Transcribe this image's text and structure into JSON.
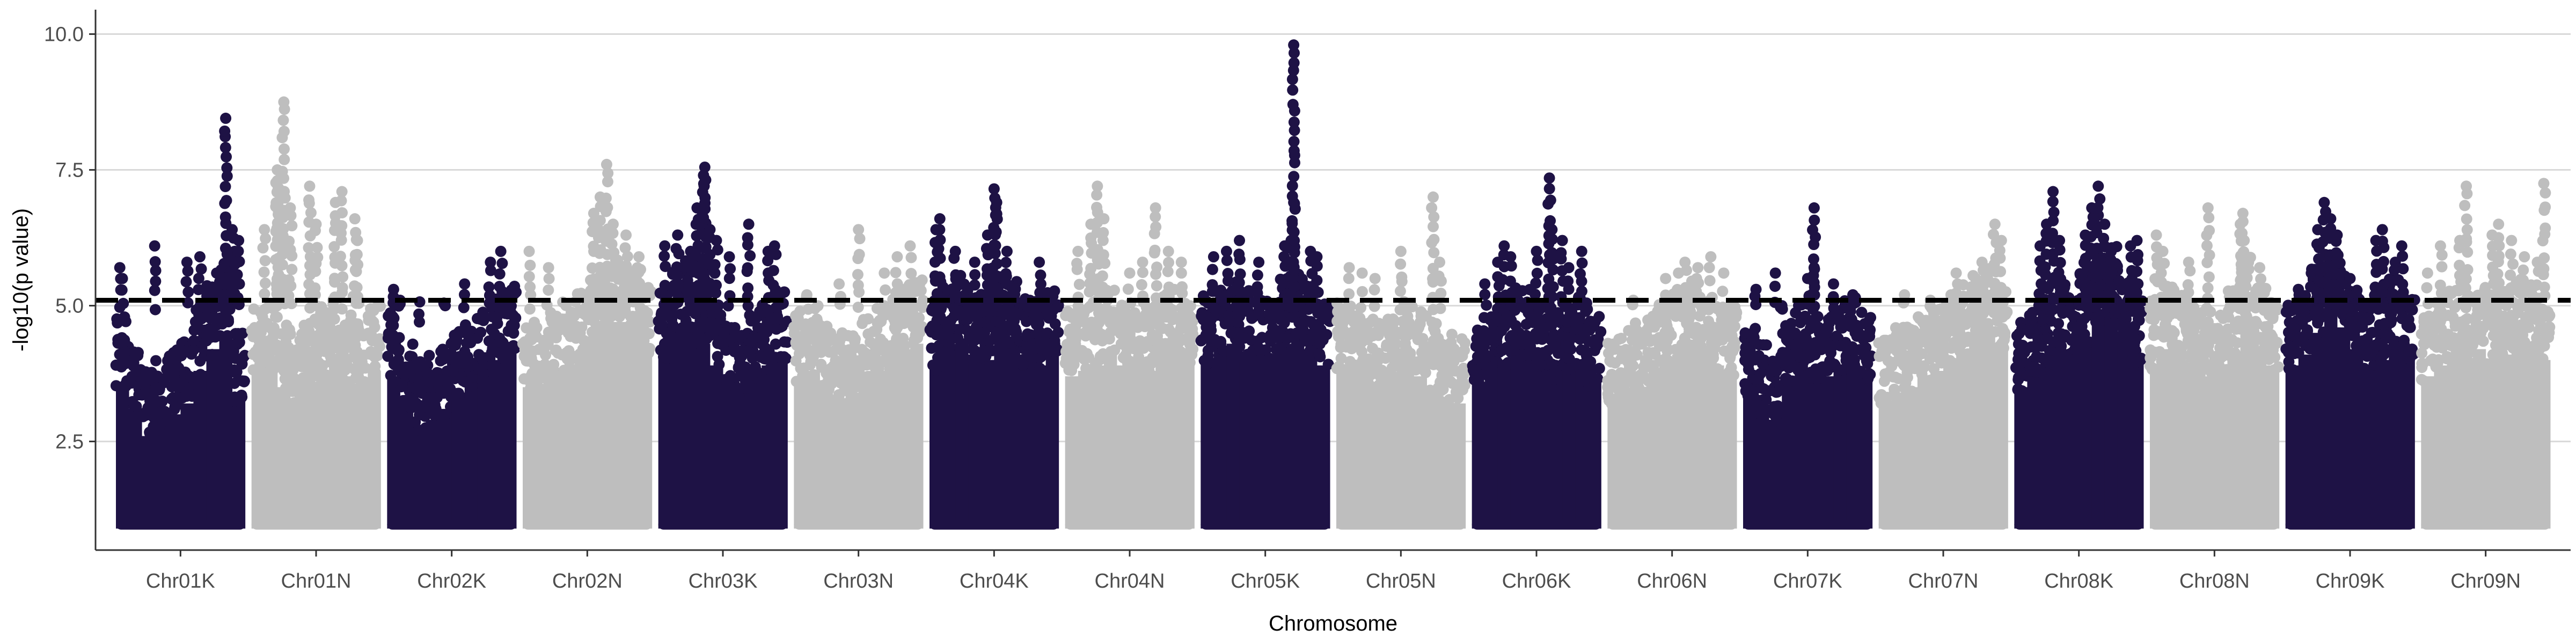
{
  "chart_data": {
    "type": "scatter",
    "subtype": "manhattan",
    "title": "",
    "xlabel": "Chromosome",
    "ylabel": "-log10(p value)",
    "ylim": [
      0.5,
      10.45
    ],
    "y_ticks": [
      2.5,
      5.0,
      7.5,
      10.0
    ],
    "y_tick_labels": [
      "2.5",
      "5.0",
      "7.5",
      "10.0"
    ],
    "grid": "horizontal major gridlines",
    "legend": "none",
    "point_min": 1.0,
    "significance_threshold": 5.1,
    "threshold_style": "black dashed line",
    "colors": {
      "dark": "#1e1245",
      "light": "#bebebe",
      "threshold": "#000000",
      "grid": "#d9d9d9",
      "axis": "#333333"
    },
    "categories": [
      "Chr01K",
      "Chr01N",
      "Chr02K",
      "Chr02N",
      "Chr03K",
      "Chr03N",
      "Chr04K",
      "Chr04N",
      "Chr05K",
      "Chr05N",
      "Chr06K",
      "Chr06N",
      "Chr07K",
      "Chr07N",
      "Chr08K",
      "Chr08N",
      "Chr09K",
      "Chr09N"
    ],
    "series": [
      {
        "chromosome": "Chr01K",
        "color": "dark",
        "dense_top": [
          4.7,
          4.2,
          3.7,
          3.9,
          4.1,
          4.3,
          4.9,
          5.3,
          5.6,
          4.4
        ],
        "peaks": [
          [
            0.03,
            5.7
          ],
          [
            0.05,
            5.5
          ],
          [
            0.3,
            6.1
          ],
          [
            0.55,
            5.8
          ],
          [
            0.65,
            5.9
          ],
          [
            0.78,
            5.6
          ],
          [
            0.9,
            6.4
          ],
          [
            0.92,
            6.0
          ],
          [
            0.88,
            5.9
          ],
          [
            0.85,
            8.45
          ],
          [
            0.95,
            6.2
          ]
        ]
      },
      {
        "chromosome": "Chr01N",
        "color": "light",
        "dense_top": [
          4.9,
          5.0,
          4.6,
          4.4,
          4.7,
          4.9,
          5.1,
          4.8,
          4.6,
          4.9
        ],
        "peaks": [
          [
            0.1,
            6.4
          ],
          [
            0.2,
            7.5
          ],
          [
            0.2,
            7.3
          ],
          [
            0.25,
            8.75
          ],
          [
            0.45,
            7.2
          ],
          [
            0.5,
            6.5
          ],
          [
            0.65,
            6.9
          ],
          [
            0.7,
            7.1
          ],
          [
            0.8,
            6.6
          ],
          [
            0.82,
            6.2
          ],
          [
            0.3,
            6.8
          ]
        ]
      },
      {
        "chromosome": "Chr02K",
        "color": "dark",
        "dense_top": [
          4.8,
          4.2,
          3.9,
          4.0,
          4.2,
          4.5,
          4.7,
          4.9,
          5.1,
          5.3
        ],
        "peaks": [
          [
            0.05,
            5.3
          ],
          [
            0.1,
            5.1
          ],
          [
            0.25,
            4.7
          ],
          [
            0.45,
            5.0
          ],
          [
            0.6,
            5.4
          ],
          [
            0.8,
            5.8
          ],
          [
            0.88,
            6.0
          ],
          [
            0.93,
            5.2
          ]
        ]
      },
      {
        "chromosome": "Chr02N",
        "color": "light",
        "dense_top": [
          4.6,
          4.5,
          4.8,
          5.0,
          5.2,
          5.4,
          5.6,
          5.8,
          5.6,
          5.3
        ],
        "peaks": [
          [
            0.05,
            6.0
          ],
          [
            0.2,
            5.7
          ],
          [
            0.55,
            6.7
          ],
          [
            0.6,
            7.0
          ],
          [
            0.65,
            7.6
          ],
          [
            0.7,
            6.5
          ],
          [
            0.8,
            6.3
          ],
          [
            0.9,
            5.9
          ]
        ]
      },
      {
        "chromosome": "Chr03K",
        "color": "dark",
        "dense_top": [
          5.2,
          5.6,
          5.8,
          5.4,
          5.0,
          4.7,
          4.5,
          4.8,
          5.0,
          5.2
        ],
        "peaks": [
          [
            0.05,
            6.1
          ],
          [
            0.15,
            6.3
          ],
          [
            0.25,
            6.0
          ],
          [
            0.3,
            6.8
          ],
          [
            0.35,
            7.4
          ],
          [
            0.36,
            7.55
          ],
          [
            0.4,
            6.4
          ],
          [
            0.45,
            6.2
          ],
          [
            0.55,
            5.9
          ],
          [
            0.7,
            6.5
          ],
          [
            0.85,
            6.0
          ],
          [
            0.9,
            6.1
          ]
        ]
      },
      {
        "chromosome": "Chr03N",
        "color": "light",
        "dense_top": [
          4.8,
          4.9,
          4.6,
          4.4,
          4.5,
          4.7,
          4.9,
          5.1,
          5.3,
          5.4
        ],
        "peaks": [
          [
            0.1,
            5.2
          ],
          [
            0.35,
            5.4
          ],
          [
            0.5,
            6.4
          ],
          [
            0.7,
            5.6
          ],
          [
            0.8,
            5.9
          ],
          [
            0.9,
            6.1
          ]
        ]
      },
      {
        "chromosome": "Chr04K",
        "color": "dark",
        "dense_top": [
          5.0,
          5.3,
          5.5,
          5.2,
          5.1,
          5.6,
          5.4,
          5.1,
          5.0,
          5.2
        ],
        "peaks": [
          [
            0.05,
            6.4
          ],
          [
            0.08,
            6.6
          ],
          [
            0.2,
            6.0
          ],
          [
            0.35,
            5.8
          ],
          [
            0.45,
            6.3
          ],
          [
            0.5,
            7.15
          ],
          [
            0.52,
            6.9
          ],
          [
            0.6,
            6.0
          ],
          [
            0.85,
            5.8
          ]
        ]
      },
      {
        "chromosome": "Chr04N",
        "color": "light",
        "dense_top": [
          4.8,
          4.9,
          5.0,
          5.2,
          5.0,
          4.8,
          4.9,
          5.1,
          5.2,
          5.0
        ],
        "peaks": [
          [
            0.1,
            6.0
          ],
          [
            0.2,
            6.5
          ],
          [
            0.25,
            7.2
          ],
          [
            0.3,
            6.6
          ],
          [
            0.5,
            5.6
          ],
          [
            0.6,
            5.8
          ],
          [
            0.7,
            6.8
          ],
          [
            0.8,
            6.0
          ],
          [
            0.9,
            5.8
          ]
        ]
      },
      {
        "chromosome": "Chr05K",
        "color": "dark",
        "dense_top": [
          5.1,
          5.3,
          5.4,
          5.2,
          5.0,
          5.1,
          5.4,
          5.6,
          5.3,
          5.0
        ],
        "peaks": [
          [
            0.1,
            5.9
          ],
          [
            0.2,
            6.0
          ],
          [
            0.3,
            6.2
          ],
          [
            0.45,
            5.8
          ],
          [
            0.65,
            6.1
          ],
          [
            0.72,
            6.9
          ],
          [
            0.7,
            6.2
          ],
          [
            0.72,
            9.8
          ],
          [
            0.85,
            6.0
          ],
          [
            0.9,
            5.9
          ]
        ]
      },
      {
        "chromosome": "Chr05N",
        "color": "light",
        "dense_top": [
          5.0,
          4.9,
          4.7,
          4.6,
          4.8,
          5.0,
          4.8,
          4.6,
          4.4,
          4.3
        ],
        "peaks": [
          [
            0.1,
            5.7
          ],
          [
            0.2,
            5.6
          ],
          [
            0.3,
            5.5
          ],
          [
            0.5,
            6.0
          ],
          [
            0.75,
            7.0
          ],
          [
            0.8,
            5.8
          ]
        ]
      },
      {
        "chromosome": "Chr06K",
        "color": "dark",
        "dense_top": [
          4.7,
          4.9,
          5.1,
          5.3,
          5.2,
          5.0,
          4.8,
          4.9,
          5.1,
          4.7
        ],
        "peaks": [
          [
            0.1,
            5.4
          ],
          [
            0.2,
            5.8
          ],
          [
            0.25,
            6.1
          ],
          [
            0.3,
            5.9
          ],
          [
            0.5,
            6.0
          ],
          [
            0.6,
            7.35
          ],
          [
            0.62,
            6.4
          ],
          [
            0.75,
            5.7
          ],
          [
            0.85,
            6.0
          ],
          [
            0.7,
            6.2
          ]
        ]
      },
      {
        "chromosome": "Chr06N",
        "color": "light",
        "dense_top": [
          4.3,
          4.5,
          4.6,
          4.8,
          5.0,
          5.2,
          5.4,
          5.2,
          5.0,
          4.9
        ],
        "peaks": [
          [
            0.2,
            5.1
          ],
          [
            0.45,
            5.5
          ],
          [
            0.55,
            5.6
          ],
          [
            0.6,
            5.8
          ],
          [
            0.7,
            5.7
          ],
          [
            0.8,
            5.9
          ],
          [
            0.9,
            5.6
          ]
        ]
      },
      {
        "chromosome": "Chr07K",
        "color": "dark",
        "dense_top": [
          4.5,
          4.2,
          4.0,
          4.6,
          5.0,
          4.7,
          4.8,
          5.0,
          5.1,
          4.8
        ],
        "peaks": [
          [
            0.1,
            5.3
          ],
          [
            0.25,
            5.6
          ],
          [
            0.3,
            5.0
          ],
          [
            0.5,
            5.5
          ],
          [
            0.55,
            5.7
          ],
          [
            0.55,
            6.8
          ],
          [
            0.7,
            5.4
          ],
          [
            0.85,
            5.2
          ]
        ]
      },
      {
        "chromosome": "Chr07N",
        "color": "light",
        "dense_top": [
          4.3,
          4.5,
          4.6,
          4.8,
          4.9,
          5.1,
          5.3,
          5.5,
          5.6,
          5.4
        ],
        "peaks": [
          [
            0.2,
            5.2
          ],
          [
            0.4,
            5.1
          ],
          [
            0.6,
            5.6
          ],
          [
            0.75,
            5.5
          ],
          [
            0.8,
            5.8
          ],
          [
            0.9,
            6.5
          ],
          [
            0.95,
            6.2
          ]
        ]
      },
      {
        "chromosome": "Chr08K",
        "color": "dark",
        "dense_top": [
          4.6,
          4.8,
          5.0,
          5.4,
          5.2,
          5.5,
          5.8,
          6.0,
          5.6,
          5.1
        ],
        "peaks": [
          [
            0.2,
            6.1
          ],
          [
            0.25,
            6.5
          ],
          [
            0.3,
            7.1
          ],
          [
            0.35,
            6.2
          ],
          [
            0.55,
            6.3
          ],
          [
            0.65,
            7.2
          ],
          [
            0.7,
            6.5
          ],
          [
            0.75,
            6.0
          ],
          [
            0.9,
            6.1
          ],
          [
            0.95,
            6.2
          ],
          [
            0.6,
            6.8
          ]
        ]
      },
      {
        "chromosome": "Chr08N",
        "color": "light",
        "dense_top": [
          5.0,
          5.3,
          5.1,
          4.9,
          4.8,
          5.0,
          5.2,
          5.9,
          5.3,
          5.0
        ],
        "peaks": [
          [
            0.05,
            6.3
          ],
          [
            0.1,
            6.0
          ],
          [
            0.3,
            5.8
          ],
          [
            0.45,
            6.8
          ],
          [
            0.7,
            6.5
          ],
          [
            0.72,
            6.7
          ],
          [
            0.73,
            6.2
          ],
          [
            0.85,
            5.7
          ]
        ]
      },
      {
        "chromosome": "Chr09K",
        "color": "dark",
        "dense_top": [
          5.0,
          5.2,
          5.6,
          6.0,
          5.7,
          5.3,
          5.0,
          5.1,
          5.4,
          5.2
        ],
        "peaks": [
          [
            0.1,
            5.3
          ],
          [
            0.2,
            5.6
          ],
          [
            0.25,
            6.4
          ],
          [
            0.3,
            6.9
          ],
          [
            0.35,
            6.6
          ],
          [
            0.4,
            6.3
          ],
          [
            0.5,
            5.5
          ],
          [
            0.7,
            6.2
          ],
          [
            0.75,
            6.4
          ],
          [
            0.9,
            6.1
          ],
          [
            0.85,
            5.8
          ]
        ]
      },
      {
        "chromosome": "Chr09N",
        "color": "light",
        "dense_top": [
          4.8,
          5.0,
          5.2,
          5.1,
          5.3,
          5.0,
          5.2,
          5.4,
          5.3,
          5.1
        ],
        "peaks": [
          [
            0.05,
            5.6
          ],
          [
            0.15,
            6.1
          ],
          [
            0.3,
            6.2
          ],
          [
            0.35,
            7.2
          ],
          [
            0.55,
            6.3
          ],
          [
            0.6,
            6.5
          ],
          [
            0.7,
            6.2
          ],
          [
            0.8,
            5.9
          ],
          [
            0.95,
            7.25
          ],
          [
            0.9,
            5.8
          ]
        ]
      }
    ]
  }
}
